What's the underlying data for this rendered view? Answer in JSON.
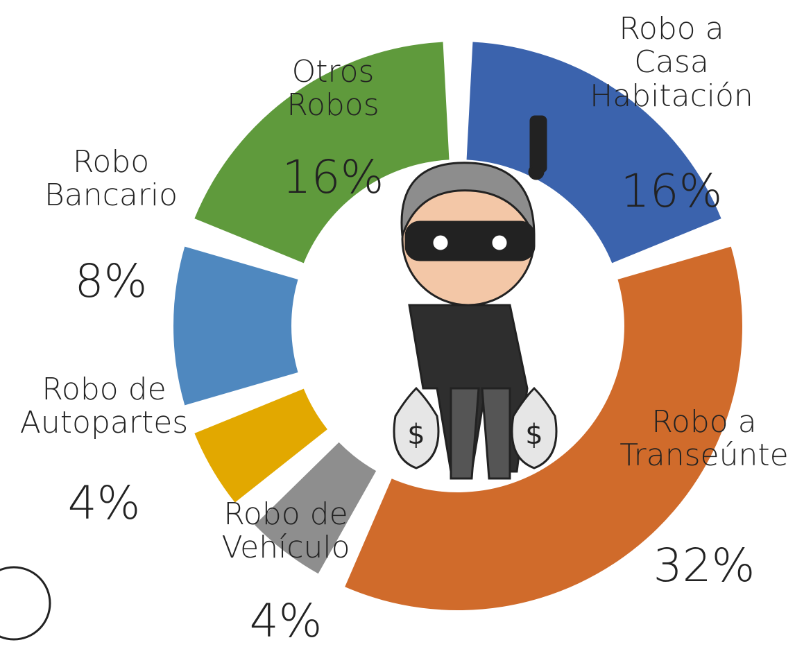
{
  "chart_data": {
    "type": "donut",
    "categories": [
      "Robo a Casa Habitación",
      "Robo a Transeúnte",
      "Robo de Vehículo",
      "Robo de Autopartes",
      "Robo Bancario",
      "Otros Robos"
    ],
    "values": [
      16,
      32,
      4,
      4,
      8,
      16
    ],
    "value_labels": [
      "16%",
      "32%",
      "4%",
      "4%",
      "8%",
      "16%"
    ],
    "colors": [
      "#3b63ad",
      "#d06b2b",
      "#8e8e8e",
      "#e2a800",
      "#4f88bf",
      "#5f9a3c"
    ]
  }
}
